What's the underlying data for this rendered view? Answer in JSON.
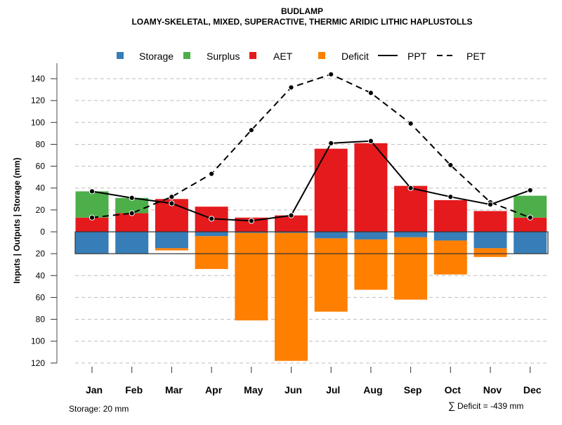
{
  "chart_data": {
    "type": "bar",
    "title": "BUDLAMP",
    "subtitle": "LOAMY-SKELETAL, MIXED, SUPERACTIVE, THERMIC ARIDIC LITHIC HAPLUSTOLLS",
    "ylabel": "Inputs | Outputs | Storage    (mm)",
    "xlabel": "",
    "categories": [
      "Jan",
      "Feb",
      "Mar",
      "Apr",
      "May",
      "Jun",
      "Jul",
      "Aug",
      "Sep",
      "Oct",
      "Nov",
      "Dec"
    ],
    "ylim": [
      -120,
      140
    ],
    "yticks": [
      140,
      120,
      100,
      80,
      60,
      40,
      20,
      0,
      -20,
      -40,
      -60,
      -80,
      -100,
      -120
    ],
    "ytick_labels": [
      "140",
      "120",
      "100",
      "80",
      "60",
      "40",
      "20",
      "0",
      "20",
      "40",
      "60",
      "80",
      "100",
      "120"
    ],
    "grid": true,
    "legend_position": "top",
    "legend": [
      {
        "name": "Storage",
        "type": "box",
        "color": "#377EB8"
      },
      {
        "name": "Surplus",
        "type": "box",
        "color": "#4DAF4A"
      },
      {
        "name": "AET",
        "type": "box",
        "color": "#E41A1C"
      },
      {
        "name": "Deficit",
        "type": "box",
        "color": "#FF7F00"
      },
      {
        "name": "PPT",
        "type": "solid-line",
        "color": "#000000"
      },
      {
        "name": "PET",
        "type": "dashed-line",
        "color": "#000000"
      }
    ],
    "series": [
      {
        "name": "AET",
        "values": [
          13,
          17,
          30,
          23,
          13,
          15,
          76,
          81,
          42,
          29,
          19,
          13
        ]
      },
      {
        "name": "Surplus",
        "values": [
          24,
          14,
          0,
          0,
          0,
          0,
          0,
          0,
          0,
          0,
          0,
          20
        ]
      },
      {
        "name": "Storage",
        "values": [
          20,
          20,
          15,
          4,
          1,
          1,
          6,
          7,
          5,
          8,
          15,
          20
        ]
      },
      {
        "name": "Deficit",
        "values": [
          0,
          0,
          2,
          30,
          80,
          117,
          67,
          46,
          57,
          31,
          8,
          0
        ]
      },
      {
        "name": "PPT",
        "values": [
          37,
          31,
          26,
          12,
          10,
          15,
          81,
          83,
          40,
          32,
          25,
          38
        ]
      },
      {
        "name": "PET",
        "values": [
          13,
          17,
          32,
          53,
          93,
          132,
          144,
          127,
          99,
          61,
          27,
          13
        ]
      }
    ],
    "storage_capacity": 20,
    "annotations": {
      "storage_note": "Storage: 20 mm",
      "deficit_sum_symbol": "∑",
      "deficit_sum": "Deficit = -439 mm"
    }
  }
}
